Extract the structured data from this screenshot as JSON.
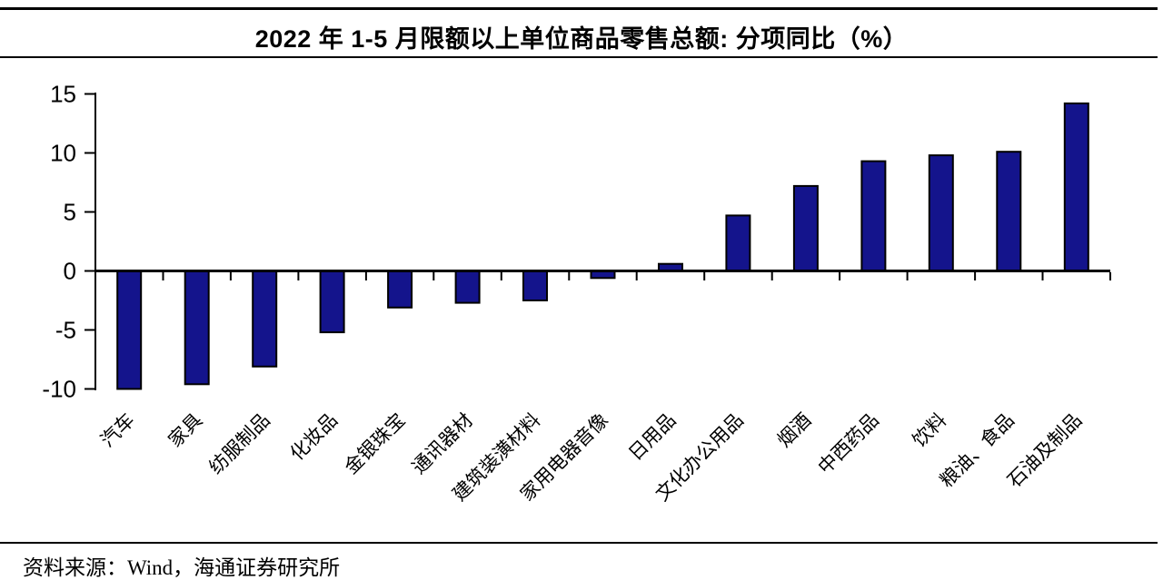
{
  "header": {
    "title": "2022 年 1-5 月限额以上单位商品零售总额: 分项同比（%）"
  },
  "footer": {
    "source_label": "资料来源：Wind，海通证券研究所"
  },
  "colors": {
    "bar_fill": "#14148C",
    "bar_stroke": "#000000",
    "axis": "#000000",
    "rule": "#000000",
    "text": "#000000"
  },
  "chart_data": {
    "type": "bar",
    "title": "2022 年 1-5 月限额以上单位商品零售总额: 分项同比（%）",
    "unit": "%",
    "categories": [
      "汽车",
      "家具",
      "纺服制品",
      "化妆品",
      "金银珠宝",
      "通讯器材",
      "建筑装潢材料",
      "家用电器音像",
      "日用品",
      "文化办公用品",
      "烟酒",
      "中西药品",
      "饮料",
      "粮油、食品",
      "石油及制品"
    ],
    "values": [
      -10.0,
      -9.6,
      -8.1,
      -5.2,
      -3.1,
      -2.7,
      -2.5,
      -0.6,
      0.6,
      4.7,
      7.2,
      9.3,
      9.8,
      10.1,
      14.2
    ],
    "xlabel": "",
    "ylabel": "",
    "ylim": [
      -10,
      15
    ],
    "yticks": [
      15,
      10,
      5,
      0,
      -5,
      -10
    ],
    "grid": false,
    "legend": "none",
    "x_label_rotation_deg": 45
  }
}
